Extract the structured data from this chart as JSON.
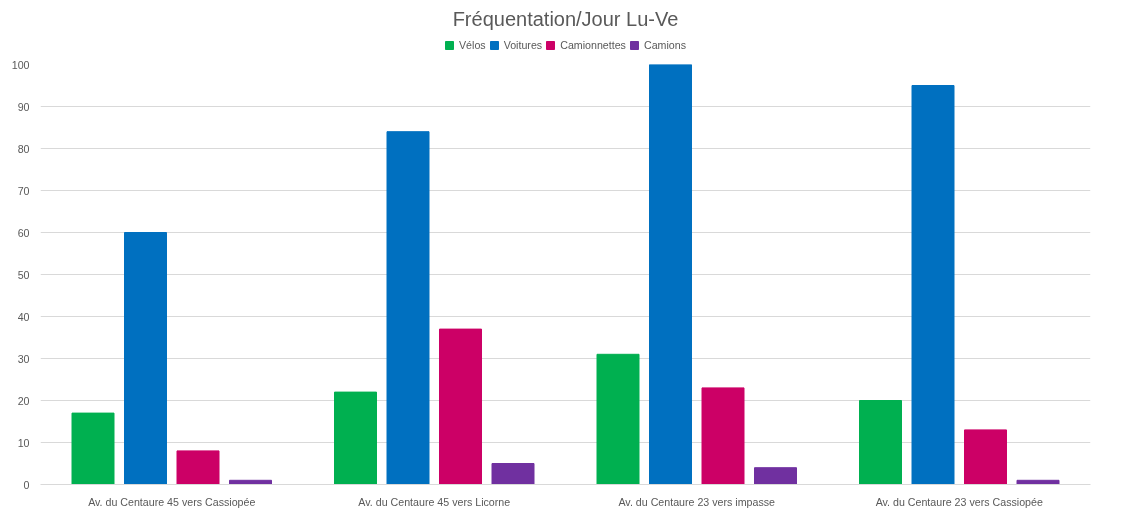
{
  "chart_data": {
    "type": "bar",
    "title": "Fréquentation/Jour Lu-Ve",
    "categories": [
      "Av. du Centaure 45 vers Cassiopée",
      "Av. du Centaure 45 vers Licorne",
      "Av. du Centaure 23 vers impasse",
      "Av. du Centaure 23 vers Cassiopée"
    ],
    "series": [
      {
        "name": "Vélos",
        "color": "#00b050",
        "values": [
          17,
          22,
          31,
          20
        ]
      },
      {
        "name": "Voitures",
        "color": "#0070c0",
        "values": [
          60,
          84,
          100,
          95
        ]
      },
      {
        "name": "Camionnettes",
        "color": "#cc0066",
        "values": [
          8,
          37,
          23,
          13
        ]
      },
      {
        "name": "Camions",
        "color": "#7030a0",
        "values": [
          1,
          5,
          4,
          1
        ]
      }
    ],
    "ylim": [
      0,
      100
    ],
    "yticks": [
      0,
      10,
      20,
      30,
      40,
      50,
      60,
      70,
      80,
      90,
      100
    ],
    "grid": "y",
    "legend": "top"
  }
}
